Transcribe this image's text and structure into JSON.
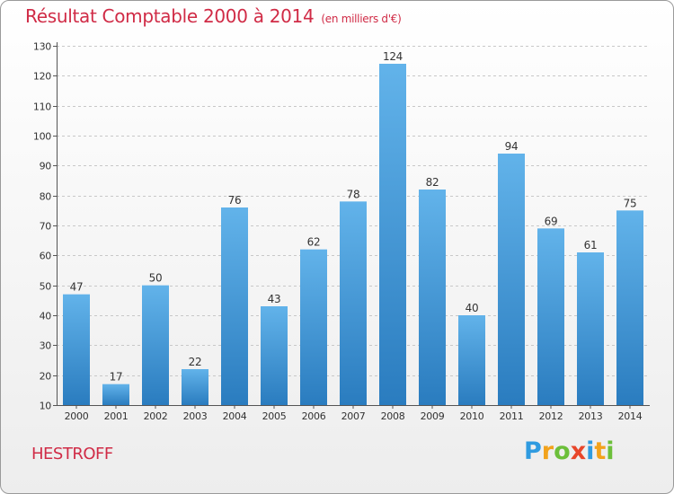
{
  "title": "Résultat Comptable 2000 à 2014",
  "subtitle": "(en milliers d'€)",
  "commune": "HESTROFF",
  "logo": {
    "text": "Proxiti",
    "letters": [
      {
        "char": "P",
        "color": "#2f9be0"
      },
      {
        "char": "r",
        "color": "#f2a21b"
      },
      {
        "char": "o",
        "color": "#6cbf3a"
      },
      {
        "char": "x",
        "color": "#e8462a"
      },
      {
        "char": "i",
        "color": "#2f9be0"
      },
      {
        "char": "t",
        "color": "#f2a21b"
      },
      {
        "char": "i",
        "color": "#6cbf3a"
      }
    ]
  },
  "colors": {
    "accent": "#d02b46",
    "bar_top": "#62b3ea",
    "bar_bottom": "#2a7cbf",
    "grid": "#c8c8c8",
    "text": "#333333"
  },
  "chart_data": {
    "type": "bar",
    "title": "Résultat Comptable 2000 à 2014",
    "subtitle": "(en milliers d'€)",
    "xlabel": "",
    "ylabel": "",
    "categories": [
      "2000",
      "2001",
      "2002",
      "2003",
      "2004",
      "2005",
      "2006",
      "2007",
      "2008",
      "2009",
      "2010",
      "2011",
      "2012",
      "2013",
      "2014"
    ],
    "values": [
      47,
      17,
      50,
      22,
      76,
      43,
      62,
      78,
      124,
      82,
      40,
      94,
      69,
      61,
      75
    ],
    "ylim": [
      10,
      130
    ],
    "yticks": [
      10,
      20,
      30,
      40,
      50,
      60,
      70,
      80,
      90,
      100,
      110,
      120,
      130
    ],
    "grid": true,
    "data_labels": true
  }
}
